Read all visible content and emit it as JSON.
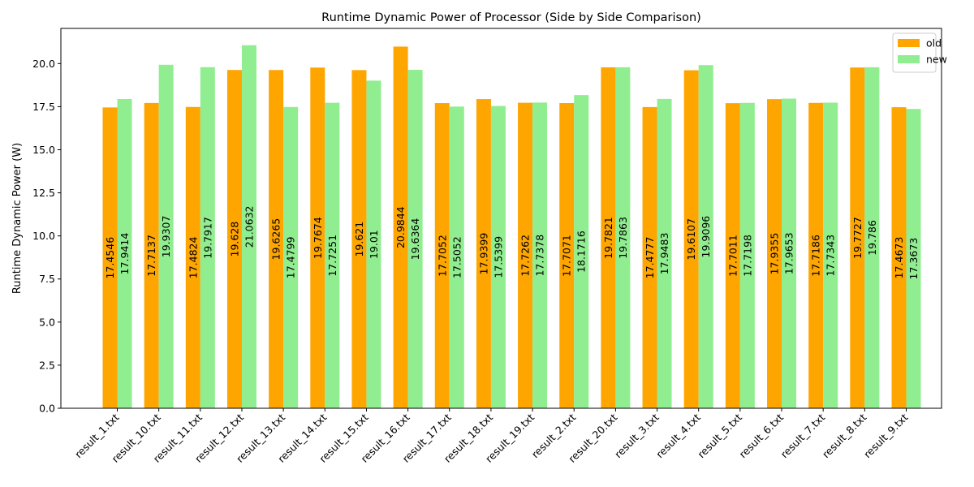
{
  "chart_data": {
    "type": "bar",
    "title": "Runtime Dynamic Power of Processor (Side by Side Comparison)",
    "xlabel": "",
    "ylabel": "Runtime Dynamic Power (W)",
    "ylim": [
      0,
      22.04
    ],
    "yticks": [
      0.0,
      2.5,
      5.0,
      7.5,
      10.0,
      12.5,
      15.0,
      17.5,
      20.0
    ],
    "yticks_labels": [
      "0.0",
      "2.5",
      "5.0",
      "7.5",
      "10.0",
      "12.5",
      "15.0",
      "17.5",
      "20.0"
    ],
    "grid": false,
    "legend_position": "top-right",
    "categories": [
      "result_1.txt",
      "result_10.txt",
      "result_11.txt",
      "result_12.txt",
      "result_13.txt",
      "result_14.txt",
      "result_15.txt",
      "result_16.txt",
      "result_17.txt",
      "result_18.txt",
      "result_19.txt",
      "result_2.txt",
      "result_20.txt",
      "result_3.txt",
      "result_4.txt",
      "result_5.txt",
      "result_6.txt",
      "result_7.txt",
      "result_8.txt",
      "result_9.txt"
    ],
    "series": [
      {
        "name": "old",
        "color": "#FFA500",
        "values": [
          17.4546,
          17.7137,
          17.4824,
          19.628,
          19.6265,
          19.7674,
          19.621,
          20.9844,
          17.7052,
          17.9399,
          17.7262,
          17.7071,
          19.7821,
          17.4777,
          19.6107,
          17.7011,
          17.9355,
          17.7186,
          19.7727,
          17.4673
        ],
        "labels": [
          "17.4546",
          "17.7137",
          "17.4824",
          "19.628",
          "19.6265",
          "19.7674",
          "19.621",
          "20.9844",
          "17.7052",
          "17.9399",
          "17.7262",
          "17.7071",
          "19.7821",
          "17.4777",
          "19.6107",
          "17.7011",
          "17.9355",
          "17.7186",
          "19.7727",
          "17.4673"
        ]
      },
      {
        "name": "new",
        "color": "#90EE90",
        "values": [
          17.9414,
          19.9307,
          19.7917,
          21.0632,
          17.4799,
          17.7251,
          19.01,
          19.6364,
          17.5052,
          17.5399,
          17.7378,
          18.1716,
          19.7863,
          17.9483,
          19.9096,
          17.7198,
          17.9653,
          17.7343,
          19.786,
          17.3673
        ],
        "labels": [
          "17.9414",
          "19.9307",
          "19.7917",
          "21.0632",
          "17.4799",
          "17.7251",
          "19.01",
          "19.6364",
          "17.5052",
          "17.5399",
          "17.7378",
          "18.1716",
          "19.7863",
          "17.9483",
          "19.9096",
          "17.7198",
          "17.9653",
          "17.7343",
          "19.786",
          "17.3673"
        ]
      }
    ]
  }
}
